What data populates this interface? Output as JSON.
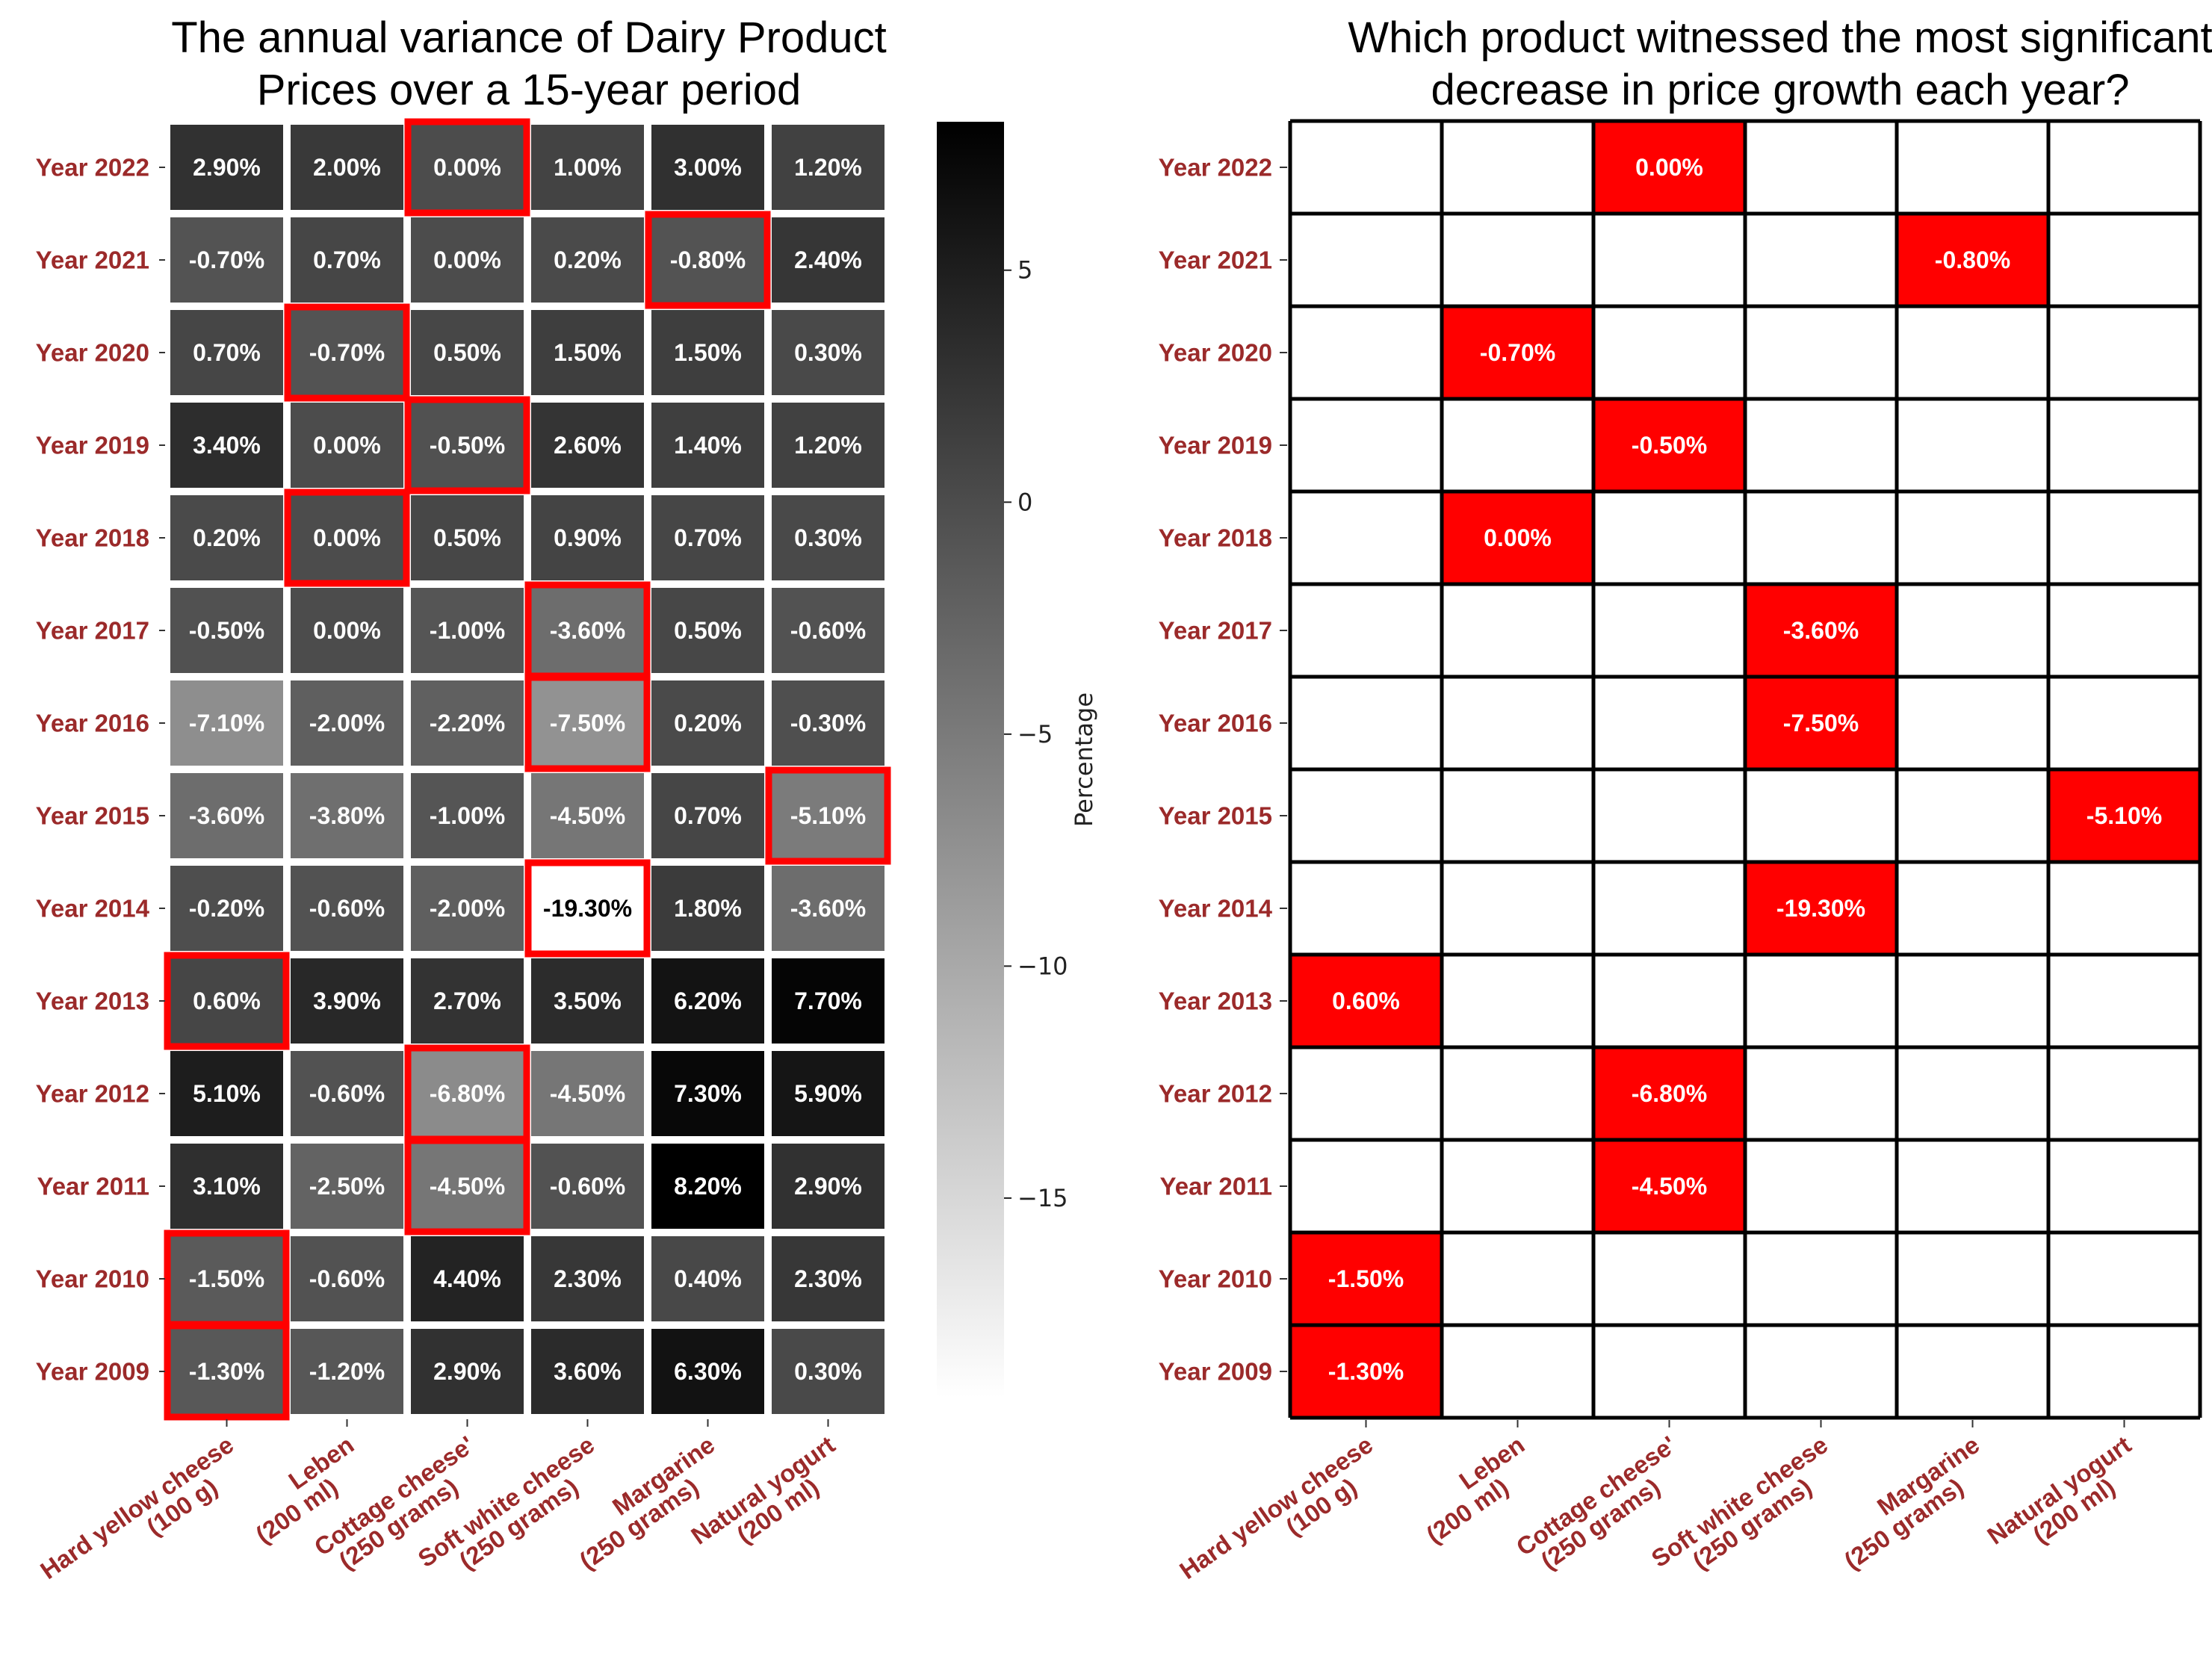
{
  "chart_data": [
    {
      "type": "heatmap",
      "title": "The annual variance of Dairy Product Prices over a 15-year period",
      "title_lines": [
        "The annual variance of Dairy Product",
        "Prices over a 15-year period"
      ],
      "rows": [
        "Year 2022",
        "Year 2021",
        "Year 2020",
        "Year 2019",
        "Year 2018",
        "Year 2017",
        "Year 2016",
        "Year 2015",
        "Year 2014",
        "Year 2013",
        "Year 2012",
        "Year 2011",
        "Year 2010",
        "Year 2009"
      ],
      "columns": [
        [
          "Hard yellow cheese",
          "(100 g)"
        ],
        [
          "Leben",
          "(200 ml)"
        ],
        [
          "Cottage cheese'",
          "(250 grams)"
        ],
        [
          "Soft white cheese",
          "(250 grams)"
        ],
        [
          "Margarine",
          "(250 grams)"
        ],
        [
          "Natural yogurt",
          "(200 ml)"
        ]
      ],
      "values": [
        [
          2.9,
          2.0,
          0.0,
          1.0,
          3.0,
          1.2
        ],
        [
          -0.7,
          0.7,
          0.0,
          0.2,
          -0.8,
          2.4
        ],
        [
          0.7,
          -0.7,
          0.5,
          1.5,
          1.5,
          0.3
        ],
        [
          3.4,
          0.0,
          -0.5,
          2.6,
          1.4,
          1.2
        ],
        [
          0.2,
          0.0,
          0.5,
          0.9,
          0.7,
          0.3
        ],
        [
          -0.5,
          0.0,
          -1.0,
          -3.6,
          0.5,
          -0.6
        ],
        [
          -7.1,
          -2.0,
          -2.2,
          -7.5,
          0.2,
          -0.3
        ],
        [
          -3.6,
          -3.8,
          -1.0,
          -4.5,
          0.7,
          -5.1
        ],
        [
          -0.2,
          -0.6,
          -2.0,
          -19.3,
          1.8,
          -3.6
        ],
        [
          0.6,
          3.9,
          2.7,
          3.5,
          6.2,
          7.7
        ],
        [
          5.1,
          -0.6,
          -6.8,
          -4.5,
          7.3,
          5.9
        ],
        [
          3.1,
          -2.5,
          -4.5,
          -0.6,
          8.2,
          2.9
        ],
        [
          -1.5,
          -0.6,
          4.4,
          2.3,
          0.4,
          2.3
        ],
        [
          -1.3,
          -1.2,
          2.9,
          3.6,
          6.3,
          0.3
        ]
      ],
      "value_format": "%.2f%",
      "highlight_min_per_row": true,
      "highlight_color": "#ff0000",
      "colormap": "gray_r",
      "colorbar": {
        "label": "Percentage",
        "range": [
          -19.3,
          8.2
        ],
        "ticks": [
          5,
          0,
          -5,
          -10,
          -15
        ],
        "tick_labels": [
          "5",
          "0",
          "−5",
          "−10",
          "−15"
        ]
      }
    },
    {
      "type": "table",
      "title": "Which product witnessed the most significant decrease in price growth each year?",
      "title_lines": [
        "Which product witnessed the most significant",
        "decrease in price growth each year?"
      ],
      "rows": [
        "Year 2022",
        "Year 2021",
        "Year 2020",
        "Year 2019",
        "Year 2018",
        "Year 2017",
        "Year 2016",
        "Year 2015",
        "Year 2014",
        "Year 2013",
        "Year 2012",
        "Year 2011",
        "Year 2010",
        "Year 2009"
      ],
      "columns": [
        [
          "Hard yellow cheese",
          "(100 g)"
        ],
        [
          "Leben",
          "(200 ml)"
        ],
        [
          "Cottage cheese'",
          "(250 grams)"
        ],
        [
          "Soft white cheese",
          "(250 grams)"
        ],
        [
          "Margarine",
          "(250 grams)"
        ],
        [
          "Natural yogurt",
          "(200 ml)"
        ]
      ],
      "highlights": [
        {
          "row": 0,
          "col": 2,
          "label": "0.00%"
        },
        {
          "row": 1,
          "col": 4,
          "label": "-0.80%"
        },
        {
          "row": 2,
          "col": 1,
          "label": "-0.70%"
        },
        {
          "row": 3,
          "col": 2,
          "label": "-0.50%"
        },
        {
          "row": 4,
          "col": 1,
          "label": "0.00%"
        },
        {
          "row": 5,
          "col": 3,
          "label": "-3.60%"
        },
        {
          "row": 6,
          "col": 3,
          "label": "-7.50%"
        },
        {
          "row": 7,
          "col": 5,
          "label": "-5.10%"
        },
        {
          "row": 8,
          "col": 3,
          "label": "-19.30%"
        },
        {
          "row": 9,
          "col": 0,
          "label": "0.60%"
        },
        {
          "row": 10,
          "col": 2,
          "label": "-6.80%"
        },
        {
          "row": 11,
          "col": 2,
          "label": "-4.50%"
        },
        {
          "row": 12,
          "col": 0,
          "label": "-1.50%"
        },
        {
          "row": 13,
          "col": 0,
          "label": "-1.30%"
        }
      ],
      "highlight_color": "#ff0000"
    }
  ],
  "colors": {
    "label_text": "#9b2a2a",
    "highlight": "#ff0000",
    "grid_line": "#000000"
  }
}
